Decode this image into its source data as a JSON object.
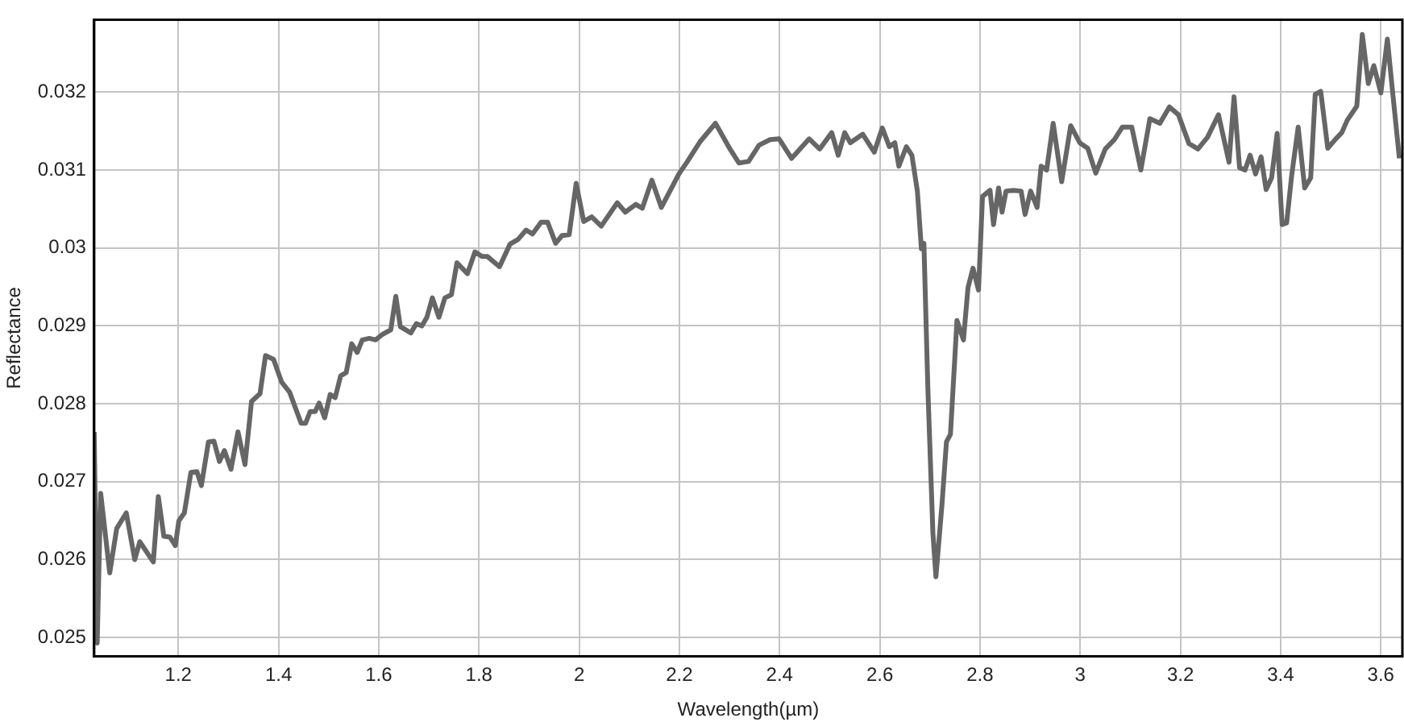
{
  "chart_data": {
    "type": "line",
    "xlabel": "Wavelength(µm)",
    "ylabel": "Reflectance",
    "xlim": [
      1.032,
      3.643
    ],
    "ylim": [
      0.02476,
      0.03293
    ],
    "xticks": [
      1.2,
      1.4,
      1.6,
      1.8,
      2,
      2.2,
      2.4,
      2.6,
      2.8,
      3,
      3.2,
      3.4,
      3.6
    ],
    "yticks": [
      0.025,
      0.026,
      0.027,
      0.028,
      0.029,
      0.03,
      0.031,
      0.032
    ],
    "grid": true,
    "legend": false,
    "marker": "none",
    "line_style": "solid",
    "series": [
      {
        "color": "#666666",
        "x": [
          1.032,
          1.038,
          1.045,
          1.063,
          1.077,
          1.096,
          1.113,
          1.123,
          1.15,
          1.16,
          1.171,
          1.183,
          1.194,
          1.201,
          1.212,
          1.225,
          1.237,
          1.246,
          1.26,
          1.271,
          1.282,
          1.292,
          1.305,
          1.319,
          1.333,
          1.346,
          1.363,
          1.374,
          1.39,
          1.406,
          1.422,
          1.445,
          1.454,
          1.463,
          1.473,
          1.481,
          1.492,
          1.503,
          1.513,
          1.524,
          1.535,
          1.546,
          1.557,
          1.567,
          1.581,
          1.594,
          1.607,
          1.624,
          1.634,
          1.643,
          1.664,
          1.675,
          1.686,
          1.696,
          1.707,
          1.72,
          1.732,
          1.745,
          1.756,
          1.777,
          1.792,
          1.806,
          1.817,
          1.841,
          1.862,
          1.878,
          1.894,
          1.907,
          1.924,
          1.937,
          1.953,
          1.966,
          1.98,
          1.994,
          2.009,
          2.025,
          2.044,
          2.076,
          2.092,
          2.113,
          2.126,
          2.145,
          2.164,
          2.199,
          2.215,
          2.242,
          2.272,
          2.301,
          2.319,
          2.338,
          2.359,
          2.381,
          2.399,
          2.424,
          2.459,
          2.48,
          2.504,
          2.517,
          2.53,
          2.541,
          2.566,
          2.589,
          2.605,
          2.619,
          2.63,
          2.638,
          2.653,
          2.664,
          2.675,
          2.683,
          2.688,
          2.696,
          2.706,
          2.712,
          2.724,
          2.733,
          2.741,
          2.754,
          2.767,
          2.776,
          2.786,
          2.797,
          2.805,
          2.82,
          2.827,
          2.837,
          2.844,
          2.852,
          2.866,
          2.882,
          2.89,
          2.901,
          2.914,
          2.922,
          2.933,
          2.946,
          2.963,
          2.981,
          2.999,
          3.015,
          3.031,
          3.05,
          3.068,
          3.084,
          3.103,
          3.121,
          3.139,
          3.159,
          3.178,
          3.196,
          3.217,
          3.235,
          3.254,
          3.276,
          3.297,
          3.307,
          3.318,
          3.329,
          3.339,
          3.35,
          3.361,
          3.371,
          3.382,
          3.393,
          3.403,
          3.412,
          3.422,
          3.435,
          3.448,
          3.46,
          3.469,
          3.48,
          3.494,
          3.51,
          3.522,
          3.533,
          3.552,
          3.563,
          3.575,
          3.586,
          3.6,
          3.613,
          3.624,
          3.637
        ],
        "values": [
          0.02764,
          0.02493,
          0.02685,
          0.02583,
          0.0264,
          0.0266,
          0.026,
          0.02623,
          0.02597,
          0.02681,
          0.0263,
          0.02629,
          0.02618,
          0.0265,
          0.0266,
          0.02712,
          0.02713,
          0.02695,
          0.02751,
          0.02752,
          0.02726,
          0.0274,
          0.02716,
          0.02764,
          0.02722,
          0.02803,
          0.02813,
          0.02862,
          0.02857,
          0.02828,
          0.02815,
          0.02775,
          0.02775,
          0.0279,
          0.0279,
          0.02801,
          0.02782,
          0.02812,
          0.02808,
          0.02836,
          0.0284,
          0.02877,
          0.02866,
          0.02882,
          0.02884,
          0.02882,
          0.02889,
          0.02895,
          0.02938,
          0.02899,
          0.02891,
          0.02903,
          0.029,
          0.02911,
          0.02936,
          0.02911,
          0.02936,
          0.0294,
          0.02981,
          0.02967,
          0.02995,
          0.02989,
          0.02989,
          0.02976,
          0.03005,
          0.03011,
          0.03023,
          0.03018,
          0.03033,
          0.03033,
          0.03006,
          0.03016,
          0.03017,
          0.03083,
          0.03034,
          0.0304,
          0.03028,
          0.03058,
          0.03046,
          0.03056,
          0.03051,
          0.03087,
          0.03052,
          0.03095,
          0.0311,
          0.03137,
          0.0316,
          0.03127,
          0.03109,
          0.03111,
          0.03132,
          0.03139,
          0.0314,
          0.03115,
          0.0314,
          0.03127,
          0.03148,
          0.03119,
          0.03148,
          0.03135,
          0.03146,
          0.03123,
          0.03154,
          0.0313,
          0.03135,
          0.03105,
          0.0313,
          0.03119,
          0.03073,
          0.02999,
          0.03006,
          0.02818,
          0.02634,
          0.02578,
          0.0267,
          0.02751,
          0.02761,
          0.02907,
          0.02882,
          0.02949,
          0.02974,
          0.02946,
          0.03066,
          0.03074,
          0.0303,
          0.03077,
          0.03046,
          0.03073,
          0.03074,
          0.03073,
          0.03043,
          0.03073,
          0.03052,
          0.03105,
          0.031,
          0.0316,
          0.03085,
          0.03157,
          0.03135,
          0.03128,
          0.03096,
          0.03127,
          0.03139,
          0.03155,
          0.03155,
          0.031,
          0.03166,
          0.0316,
          0.03181,
          0.03171,
          0.03134,
          0.03127,
          0.03142,
          0.03171,
          0.0311,
          0.03194,
          0.03103,
          0.031,
          0.03119,
          0.03095,
          0.03117,
          0.03075,
          0.0309,
          0.03147,
          0.0303,
          0.03032,
          0.03093,
          0.03155,
          0.03077,
          0.0309,
          0.03197,
          0.03201,
          0.03128,
          0.0314,
          0.03148,
          0.03164,
          0.03182,
          0.03274,
          0.03211,
          0.03234,
          0.03199,
          0.03268,
          0.03197,
          0.03115
        ]
      }
    ]
  }
}
